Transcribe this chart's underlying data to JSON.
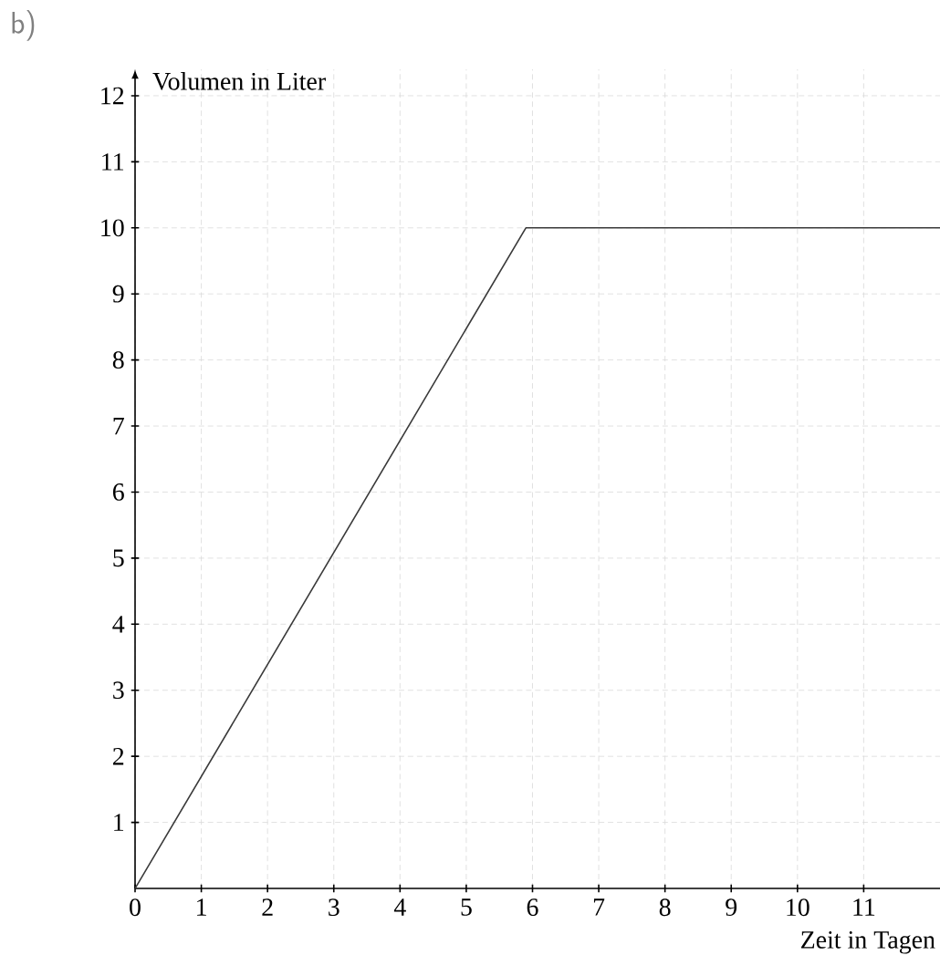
{
  "chart_data": {
    "type": "line",
    "xlabel": "Zeit in Tagen",
    "ylabel": "Volumen in Liter",
    "annotations": [
      "b)"
    ],
    "x": [
      0,
      5.9,
      12.4
    ],
    "series": [
      {
        "color": "#3a3a3a",
        "values": [
          0,
          10,
          10
        ]
      }
    ],
    "xlim": [
      0,
      12.4
    ],
    "ylim": [
      0,
      12.4
    ],
    "xticks": [
      0,
      1,
      2,
      3,
      4,
      5,
      6,
      7,
      8,
      9,
      10,
      11
    ],
    "yticks": [
      1,
      2,
      3,
      4,
      5,
      6,
      7,
      8,
      9,
      10,
      11,
      12
    ],
    "grid": true
  }
}
